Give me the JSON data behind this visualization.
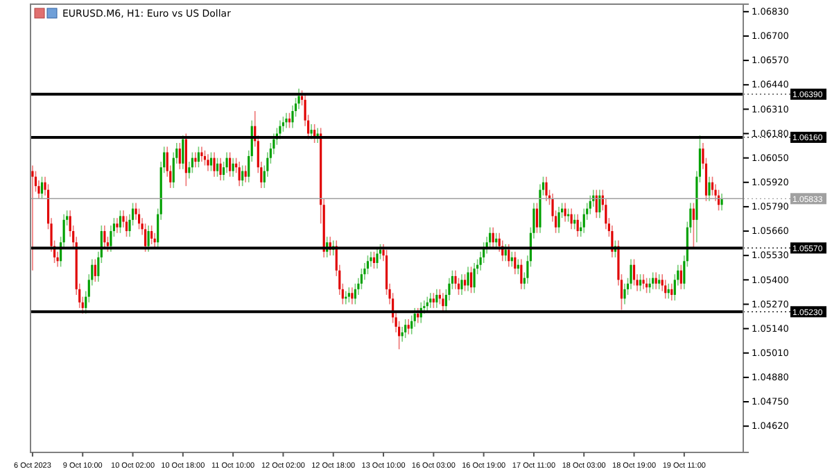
{
  "chart_data": {
    "type": "candlestick",
    "title": "EURUSD.M6, H1: Euro vs US Dollar",
    "categories": [
      "6 Oct 2023",
      null,
      null,
      null,
      null,
      null,
      null,
      null,
      null,
      null,
      null,
      null,
      null,
      null,
      null,
      null,
      "9 Oct 10:00",
      null,
      null,
      null,
      null,
      null,
      null,
      null,
      null,
      null,
      null,
      null,
      null,
      null,
      null,
      null,
      "10 Oct 02:00",
      null,
      null,
      null,
      null,
      null,
      null,
      null,
      null,
      null,
      null,
      null,
      null,
      null,
      null,
      null,
      "10 Oct 18:00",
      null,
      null,
      null,
      null,
      null,
      null,
      null,
      null,
      null,
      null,
      null,
      null,
      null,
      null,
      null,
      "11 Oct 10:00",
      null,
      null,
      null,
      null,
      null,
      null,
      null,
      null,
      null,
      null,
      null,
      null,
      null,
      null,
      null,
      "12 Oct 02:00",
      null,
      null,
      null,
      null,
      null,
      null,
      null,
      null,
      null,
      null,
      null,
      null,
      null,
      null,
      null,
      "12 Oct 18:00",
      null,
      null,
      null,
      null,
      null,
      null,
      null,
      null,
      null,
      null,
      null,
      null,
      null,
      null,
      null,
      "13 Oct 10:00",
      null,
      null,
      null,
      null,
      null,
      null,
      null,
      null,
      null,
      null,
      null,
      null,
      null,
      null,
      null,
      "16 Oct 03:00",
      null,
      null,
      null,
      null,
      null,
      null,
      null,
      null,
      null,
      null,
      null,
      null,
      null,
      null,
      null,
      "16 Oct 19:00",
      null,
      null,
      null,
      null,
      null,
      null,
      null,
      null,
      null,
      null,
      null,
      null,
      null,
      null,
      null,
      "17 Oct 11:00",
      null,
      null,
      null,
      null,
      null,
      null,
      null,
      null,
      null,
      null,
      null,
      null,
      null,
      null,
      null,
      "18 Oct 03:00",
      null,
      null,
      null,
      null,
      null,
      null,
      null,
      null,
      null,
      null,
      null,
      null,
      null,
      null,
      null,
      "18 Oct 19:00",
      null,
      null,
      null,
      null,
      null,
      null,
      null,
      null,
      null,
      null,
      null,
      null,
      null,
      null,
      null,
      "19 Oct 11:00",
      null,
      null,
      null,
      null,
      null,
      null,
      null,
      null,
      null,
      null,
      null,
      null
    ],
    "ohlc": [
      [
        1.0598,
        1.0601,
        1.0545,
        1.0595
      ],
      [
        1.0595,
        1.0598,
        1.0587,
        1.059
      ],
      [
        1.059,
        1.0593,
        1.0583,
        1.0586
      ],
      [
        1.0586,
        1.0595,
        1.0583,
        1.0592
      ],
      [
        1.0592,
        1.0595,
        1.0585,
        1.0588
      ],
      [
        1.0588,
        1.0591,
        1.0567,
        1.057
      ],
      [
        1.057,
        1.0573,
        1.0555,
        1.0558
      ],
      [
        1.0558,
        1.0561,
        1.0549,
        1.0552
      ],
      [
        1.0552,
        1.0555,
        1.0547,
        1.055
      ],
      [
        1.055,
        1.0563,
        1.0547,
        1.056
      ],
      [
        1.056,
        1.0575,
        1.0557,
        1.0572
      ],
      [
        1.0572,
        1.0577,
        1.0569,
        1.0574
      ],
      [
        1.0574,
        1.0577,
        1.0563,
        1.0566
      ],
      [
        1.0566,
        1.0569,
        1.0557,
        1.056
      ],
      [
        1.056,
        1.0563,
        1.0532,
        1.0535
      ],
      [
        1.0535,
        1.0538,
        1.0525,
        1.0528
      ],
      [
        1.0528,
        1.0531,
        1.0522,
        1.0525
      ],
      [
        1.0525,
        1.0534,
        1.0522,
        1.0531
      ],
      [
        1.0531,
        1.0543,
        1.0528,
        1.054
      ],
      [
        1.054,
        1.0551,
        1.0537,
        1.0548
      ],
      [
        1.0548,
        1.0551,
        1.0539,
        1.0542
      ],
      [
        1.0542,
        1.0555,
        1.0539,
        1.0552
      ],
      [
        1.0552,
        1.0569,
        1.0549,
        1.0566
      ],
      [
        1.0566,
        1.0569,
        1.0557,
        1.056
      ],
      [
        1.056,
        1.0563,
        1.0555,
        1.0558
      ],
      [
        1.0558,
        1.0569,
        1.0555,
        1.0566
      ],
      [
        1.0566,
        1.0573,
        1.0563,
        1.057
      ],
      [
        1.057,
        1.0573,
        1.0565,
        1.0568
      ],
      [
        1.0568,
        1.0577,
        1.0565,
        1.0574
      ],
      [
        1.0574,
        1.0577,
        1.0568,
        1.0571
      ],
      [
        1.0571,
        1.0574,
        1.0563,
        1.0566
      ],
      [
        1.0566,
        1.0575,
        1.0563,
        1.0572
      ],
      [
        1.0572,
        1.0581,
        1.0569,
        1.0578
      ],
      [
        1.0578,
        1.0581,
        1.0572,
        1.0575
      ],
      [
        1.0575,
        1.0578,
        1.0567,
        1.057
      ],
      [
        1.057,
        1.0573,
        1.0564,
        1.0567
      ],
      [
        1.0567,
        1.057,
        1.0555,
        1.0558
      ],
      [
        1.0558,
        1.0569,
        1.0555,
        1.0566
      ],
      [
        1.0566,
        1.0569,
        1.0559,
        1.0562
      ],
      [
        1.0562,
        1.0565,
        1.0557,
        1.056
      ],
      [
        1.056,
        1.0578,
        1.0557,
        1.0575
      ],
      [
        1.0575,
        1.0603,
        1.0572,
        1.06
      ],
      [
        1.06,
        1.0611,
        1.0597,
        1.0608
      ],
      [
        1.0608,
        1.0611,
        1.0595,
        1.0598
      ],
      [
        1.0598,
        1.0601,
        1.0589,
        1.0592
      ],
      [
        1.0592,
        1.0608,
        1.0589,
        1.0605
      ],
      [
        1.0605,
        1.0613,
        1.0602,
        1.061
      ],
      [
        1.061,
        1.0613,
        1.0599,
        1.0602
      ],
      [
        1.0602,
        1.0617,
        1.0599,
        1.0615
      ],
      [
        1.0615,
        1.0618,
        1.059,
        1.0597
      ],
      [
        1.0597,
        1.0603,
        1.0594,
        1.06
      ],
      [
        1.06,
        1.0608,
        1.0597,
        1.0605
      ],
      [
        1.0605,
        1.0608,
        1.06,
        1.0603
      ],
      [
        1.0603,
        1.0611,
        1.06,
        1.0608
      ],
      [
        1.0608,
        1.0611,
        1.0603,
        1.0606
      ],
      [
        1.0606,
        1.0609,
        1.0601,
        1.0604
      ],
      [
        1.0604,
        1.0607,
        1.0598,
        1.0601
      ],
      [
        1.0601,
        1.0608,
        1.0598,
        1.0605
      ],
      [
        1.0605,
        1.0608,
        1.0595,
        1.0598
      ],
      [
        1.0598,
        1.0605,
        1.0595,
        1.0602
      ],
      [
        1.0602,
        1.0605,
        1.0593,
        1.0596
      ],
      [
        1.0596,
        1.0603,
        1.0593,
        1.06
      ],
      [
        1.06,
        1.0608,
        1.0597,
        1.0605
      ],
      [
        1.0605,
        1.0608,
        1.0595,
        1.0598
      ],
      [
        1.0598,
        1.0605,
        1.0595,
        1.0602
      ],
      [
        1.0602,
        1.0605,
        1.0597,
        1.06
      ],
      [
        1.06,
        1.0603,
        1.059,
        1.0593
      ],
      [
        1.0593,
        1.0601,
        1.059,
        1.0598
      ],
      [
        1.0598,
        1.0601,
        1.0592,
        1.0595
      ],
      [
        1.0595,
        1.0609,
        1.0592,
        1.0606
      ],
      [
        1.0606,
        1.0625,
        1.0603,
        1.0622
      ],
      [
        1.0622,
        1.063,
        1.0611,
        1.0614
      ],
      [
        1.0614,
        1.0617,
        1.0597,
        1.06
      ],
      [
        1.06,
        1.0603,
        1.0589,
        1.0592
      ],
      [
        1.0592,
        1.0601,
        1.0589,
        1.0598
      ],
      [
        1.0598,
        1.0608,
        1.0595,
        1.0605
      ],
      [
        1.0605,
        1.0613,
        1.0602,
        1.061
      ],
      [
        1.061,
        1.0618,
        1.0607,
        1.0615
      ],
      [
        1.0615,
        1.0621,
        1.0612,
        1.0618
      ],
      [
        1.0618,
        1.0625,
        1.0615,
        1.0622
      ],
      [
        1.0622,
        1.0627,
        1.0619,
        1.0624
      ],
      [
        1.0624,
        1.0629,
        1.0621,
        1.0626
      ],
      [
        1.0626,
        1.0629,
        1.0621,
        1.0624
      ],
      [
        1.0624,
        1.0633,
        1.0621,
        1.063
      ],
      [
        1.063,
        1.0637,
        1.0627,
        1.0634
      ],
      [
        1.0634,
        1.0642,
        1.0631,
        1.0638
      ],
      [
        1.0638,
        1.0641,
        1.0633,
        1.0636
      ],
      [
        1.0636,
        1.0639,
        1.0622,
        1.0625
      ],
      [
        1.0625,
        1.0628,
        1.0615,
        1.0618
      ],
      [
        1.0618,
        1.0623,
        1.0615,
        1.062
      ],
      [
        1.062,
        1.0623,
        1.0613,
        1.0616
      ],
      [
        1.0616,
        1.0621,
        1.0613,
        1.0618
      ],
      [
        1.0618,
        1.0621,
        1.057,
        1.058
      ],
      [
        1.058,
        1.0583,
        1.0552,
        1.0555
      ],
      [
        1.0555,
        1.0563,
        1.0552,
        1.056
      ],
      [
        1.056,
        1.0563,
        1.0553,
        1.0556
      ],
      [
        1.0556,
        1.0561,
        1.0553,
        1.0558
      ],
      [
        1.0558,
        1.0561,
        1.0542,
        1.0545
      ],
      [
        1.0545,
        1.0548,
        1.0532,
        1.0535
      ],
      [
        1.0535,
        1.0538,
        1.0527,
        1.053
      ],
      [
        1.053,
        1.0534,
        1.0527,
        1.0531
      ],
      [
        1.0531,
        1.0536,
        1.0528,
        1.0533
      ],
      [
        1.0533,
        1.0536,
        1.0527,
        1.053
      ],
      [
        1.053,
        1.0538,
        1.0527,
        1.0535
      ],
      [
        1.0535,
        1.0541,
        1.0532,
        1.0538
      ],
      [
        1.0538,
        1.0546,
        1.0535,
        1.0543
      ],
      [
        1.0543,
        1.0549,
        1.054,
        1.0546
      ],
      [
        1.0546,
        1.0553,
        1.0543,
        1.055
      ],
      [
        1.055,
        1.0555,
        1.0547,
        1.0552
      ],
      [
        1.0552,
        1.0555,
        1.0546,
        1.0549
      ],
      [
        1.0549,
        1.0557,
        1.0546,
        1.0554
      ],
      [
        1.0554,
        1.0559,
        1.0551,
        1.0556
      ],
      [
        1.0556,
        1.0559,
        1.055,
        1.0553
      ],
      [
        1.0553,
        1.0556,
        1.0532,
        1.0535
      ],
      [
        1.0535,
        1.0538,
        1.0527,
        1.053
      ],
      [
        1.053,
        1.0533,
        1.0517,
        1.052
      ],
      [
        1.052,
        1.0523,
        1.0512,
        1.0515
      ],
      [
        1.0515,
        1.0518,
        1.0503,
        1.051
      ],
      [
        1.051,
        1.0515,
        1.0507,
        1.0512
      ],
      [
        1.0512,
        1.0519,
        1.0509,
        1.0516
      ],
      [
        1.0516,
        1.0519,
        1.0511,
        1.0514
      ],
      [
        1.0514,
        1.0521,
        1.0511,
        1.0518
      ],
      [
        1.0518,
        1.0525,
        1.0515,
        1.0522
      ],
      [
        1.0522,
        1.0525,
        1.0517,
        1.052
      ],
      [
        1.052,
        1.0528,
        1.0517,
        1.0525
      ],
      [
        1.0525,
        1.0529,
        1.0522,
        1.0526
      ],
      [
        1.0526,
        1.0531,
        1.0523,
        1.0528
      ],
      [
        1.0528,
        1.0533,
        1.0525,
        1.053
      ],
      [
        1.053,
        1.0533,
        1.0525,
        1.0528
      ],
      [
        1.0528,
        1.0535,
        1.0525,
        1.0532
      ],
      [
        1.0532,
        1.0535,
        1.0527,
        1.053
      ],
      [
        1.053,
        1.0533,
        1.0523,
        1.0526
      ],
      [
        1.0526,
        1.0535,
        1.0523,
        1.0532
      ],
      [
        1.0532,
        1.0541,
        1.0529,
        1.0538
      ],
      [
        1.0538,
        1.0545,
        1.0535,
        1.0542
      ],
      [
        1.0542,
        1.0545,
        1.0535,
        1.0538
      ],
      [
        1.0538,
        1.0541,
        1.0532,
        1.0535
      ],
      [
        1.0535,
        1.0543,
        1.0532,
        1.054
      ],
      [
        1.054,
        1.0543,
        1.0534,
        1.0537
      ],
      [
        1.0537,
        1.0547,
        1.0534,
        1.0544
      ],
      [
        1.0544,
        1.0547,
        1.0533,
        1.0536
      ],
      [
        1.0536,
        1.0549,
        1.0533,
        1.0546
      ],
      [
        1.0546,
        1.0551,
        1.0543,
        1.0548
      ],
      [
        1.0548,
        1.0555,
        1.0545,
        1.0552
      ],
      [
        1.0552,
        1.056,
        1.0549,
        1.0557
      ],
      [
        1.0557,
        1.0563,
        1.0554,
        1.056
      ],
      [
        1.056,
        1.0568,
        1.0557,
        1.0565
      ],
      [
        1.0565,
        1.0568,
        1.0557,
        1.056
      ],
      [
        1.056,
        1.0565,
        1.0557,
        1.0562
      ],
      [
        1.0562,
        1.0565,
        1.0555,
        1.0558
      ],
      [
        1.0558,
        1.0561,
        1.055,
        1.0553
      ],
      [
        1.0553,
        1.0559,
        1.055,
        1.0556
      ],
      [
        1.0556,
        1.0559,
        1.0547,
        1.055
      ],
      [
        1.055,
        1.0555,
        1.0547,
        1.0552
      ],
      [
        1.0552,
        1.0555,
        1.0543,
        1.0546
      ],
      [
        1.0546,
        1.0551,
        1.0543,
        1.0548
      ],
      [
        1.0548,
        1.0551,
        1.0535,
        1.0538
      ],
      [
        1.0538,
        1.0544,
        1.0535,
        1.0541
      ],
      [
        1.0541,
        1.0553,
        1.0538,
        1.055
      ],
      [
        1.055,
        1.0568,
        1.0547,
        1.0565
      ],
      [
        1.0565,
        1.0581,
        1.0562,
        1.0578
      ],
      [
        1.0578,
        1.0581,
        1.0565,
        1.0568
      ],
      [
        1.0568,
        1.0591,
        1.0565,
        1.0588
      ],
      [
        1.0588,
        1.0595,
        1.0585,
        1.0592
      ],
      [
        1.0592,
        1.0595,
        1.0582,
        1.0585
      ],
      [
        1.0585,
        1.0588,
        1.058,
        1.0583
      ],
      [
        1.0583,
        1.0586,
        1.0571,
        1.0574
      ],
      [
        1.0574,
        1.0577,
        1.0565,
        1.0568
      ],
      [
        1.0568,
        1.0579,
        1.0565,
        1.0576
      ],
      [
        1.0576,
        1.0581,
        1.0573,
        1.0578
      ],
      [
        1.0578,
        1.0581,
        1.0571,
        1.0574
      ],
      [
        1.0574,
        1.0578,
        1.0571,
        1.0575
      ],
      [
        1.0575,
        1.0578,
        1.0567,
        1.057
      ],
      [
        1.057,
        1.0575,
        1.0567,
        1.0572
      ],
      [
        1.0572,
        1.0575,
        1.0563,
        1.0566
      ],
      [
        1.0566,
        1.0571,
        1.0563,
        1.0568
      ],
      [
        1.0568,
        1.0578,
        1.0565,
        1.0575
      ],
      [
        1.0575,
        1.0581,
        1.0572,
        1.0578
      ],
      [
        1.0578,
        1.0585,
        1.0575,
        1.0582
      ],
      [
        1.0582,
        1.0588,
        1.0579,
        1.0585
      ],
      [
        1.0585,
        1.0588,
        1.0573,
        1.0576
      ],
      [
        1.0576,
        1.0588,
        1.0573,
        1.0585
      ],
      [
        1.0585,
        1.0588,
        1.0577,
        1.058
      ],
      [
        1.058,
        1.0583,
        1.0567,
        1.057
      ],
      [
        1.057,
        1.0573,
        1.0563,
        1.0566
      ],
      [
        1.0566,
        1.0569,
        1.0552,
        1.0555
      ],
      [
        1.0555,
        1.0561,
        1.0552,
        1.0558
      ],
      [
        1.0558,
        1.0561,
        1.0537,
        1.054
      ],
      [
        1.054,
        1.0543,
        1.0524,
        1.053
      ],
      [
        1.053,
        1.0538,
        1.0527,
        1.0535
      ],
      [
        1.0535,
        1.0541,
        1.0532,
        1.0538
      ],
      [
        1.0538,
        1.0551,
        1.0535,
        1.0548
      ],
      [
        1.0548,
        1.0551,
        1.0537,
        1.054
      ],
      [
        1.054,
        1.0543,
        1.0534,
        1.0537
      ],
      [
        1.0537,
        1.0543,
        1.0534,
        1.054
      ],
      [
        1.054,
        1.0543,
        1.0535,
        1.0538
      ],
      [
        1.0538,
        1.0541,
        1.0533,
        1.0536
      ],
      [
        1.0536,
        1.0541,
        1.0533,
        1.0538
      ],
      [
        1.0538,
        1.0544,
        1.0535,
        1.0541
      ],
      [
        1.0541,
        1.0544,
        1.0535,
        1.0538
      ],
      [
        1.0538,
        1.0543,
        1.0535,
        1.054
      ],
      [
        1.054,
        1.0543,
        1.0534,
        1.0537
      ],
      [
        1.0537,
        1.054,
        1.053,
        1.0533
      ],
      [
        1.0533,
        1.0538,
        1.053,
        1.0535
      ],
      [
        1.0535,
        1.0538,
        1.0529,
        1.0532
      ],
      [
        1.0532,
        1.0543,
        1.0529,
        1.054
      ],
      [
        1.054,
        1.0548,
        1.0537,
        1.0545
      ],
      [
        1.0545,
        1.0548,
        1.0535,
        1.0538
      ],
      [
        1.0538,
        1.0553,
        1.0535,
        1.055
      ],
      [
        1.055,
        1.0571,
        1.0547,
        1.0568
      ],
      [
        1.0568,
        1.0581,
        1.0565,
        1.0578
      ],
      [
        1.0578,
        1.0581,
        1.0557,
        1.0572
      ],
      [
        1.0572,
        1.0598,
        1.056,
        1.0595
      ],
      [
        1.0595,
        1.0617,
        1.0592,
        1.061
      ],
      [
        1.061,
        1.0613,
        1.0599,
        1.0602
      ],
      [
        1.0602,
        1.0605,
        1.0582,
        1.0585
      ],
      [
        1.0585,
        1.0595,
        1.0582,
        1.0592
      ],
      [
        1.0592,
        1.0595,
        1.0585,
        1.0588
      ],
      [
        1.0588,
        1.0591,
        1.0582,
        1.0585
      ],
      [
        1.0585,
        1.0588,
        1.0577,
        1.058
      ],
      [
        1.058,
        1.0586,
        1.0577,
        1.0583
      ]
    ],
    "ylim": [
      1.0448,
      1.0687
    ],
    "yticks": [
      {
        "value": 1.0683,
        "label": "1.06830"
      },
      {
        "value": 1.067,
        "label": "1.06700"
      },
      {
        "value": 1.0657,
        "label": "1.06570"
      },
      {
        "value": 1.0644,
        "label": "1.06440"
      },
      {
        "value": 1.0631,
        "label": "1.06310"
      },
      {
        "value": 1.0618,
        "label": "1.06180"
      },
      {
        "value": 1.0605,
        "label": "1.06050"
      },
      {
        "value": 1.0592,
        "label": "1.05920"
      },
      {
        "value": 1.0579,
        "label": "1.05790"
      },
      {
        "value": 1.0566,
        "label": "1.05660"
      },
      {
        "value": 1.0553,
        "label": "1.05530"
      },
      {
        "value": 1.054,
        "label": "1.05400"
      },
      {
        "value": 1.0527,
        "label": "1.05270"
      },
      {
        "value": 1.0514,
        "label": "1.05140"
      },
      {
        "value": 1.0501,
        "label": "1.05010"
      },
      {
        "value": 1.0488,
        "label": "1.04880"
      },
      {
        "value": 1.0475,
        "label": "1.04750"
      },
      {
        "value": 1.0462,
        "label": "1.04620"
      }
    ],
    "ref_lines": [
      {
        "axis": "y",
        "value": 1.0639,
        "label": "1.06390",
        "color": "#000000"
      },
      {
        "axis": "y",
        "value": 1.0616,
        "label": "1.06160",
        "color": "#000000"
      },
      {
        "axis": "y",
        "value": 1.0557,
        "label": "1.05570",
        "color": "#000000"
      },
      {
        "axis": "y",
        "value": 1.0523,
        "label": "1.05230",
        "color": "#000000"
      },
      {
        "axis": "y",
        "value": 1.05833,
        "label": "1.05833",
        "color": "#a0a0a0"
      }
    ],
    "grid": false
  }
}
